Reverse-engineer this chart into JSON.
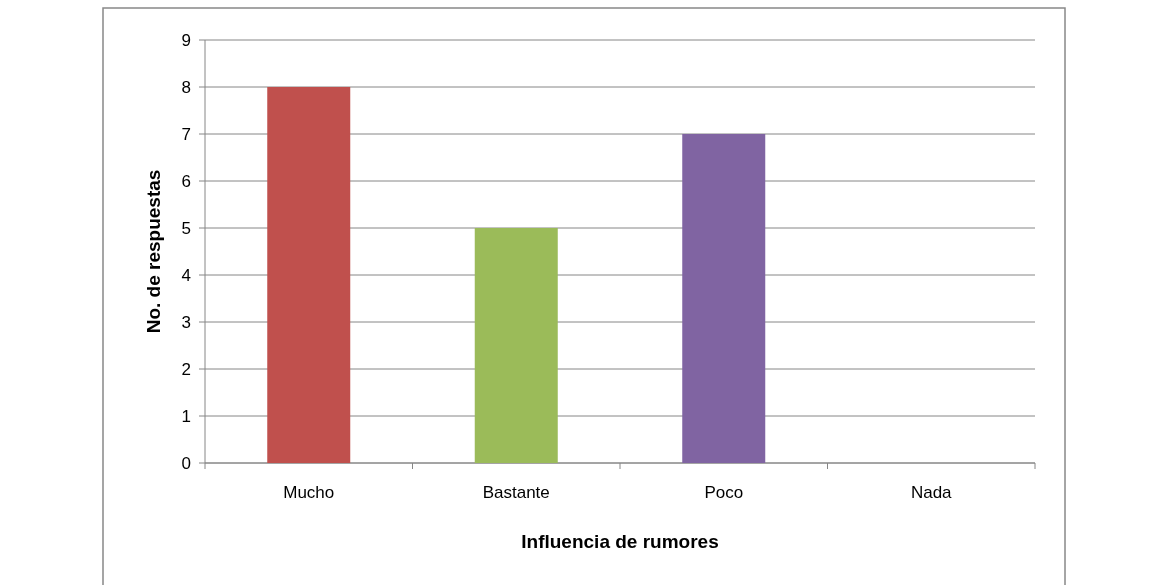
{
  "chart_data": {
    "type": "bar",
    "xlabel": "Influencia de rumores",
    "ylabel": "No. de respuestas",
    "categories": [
      "Mucho",
      "Bastante",
      "Poco",
      "Nada"
    ],
    "values": [
      8,
      5,
      7,
      0
    ],
    "colors": [
      "#c0504d",
      "#9bbb59",
      "#8064a2",
      "#4bacc6"
    ],
    "ylim": [
      0,
      9
    ],
    "yticks": [
      0,
      1,
      2,
      3,
      4,
      5,
      6,
      7,
      8,
      9
    ],
    "grid": "y"
  }
}
